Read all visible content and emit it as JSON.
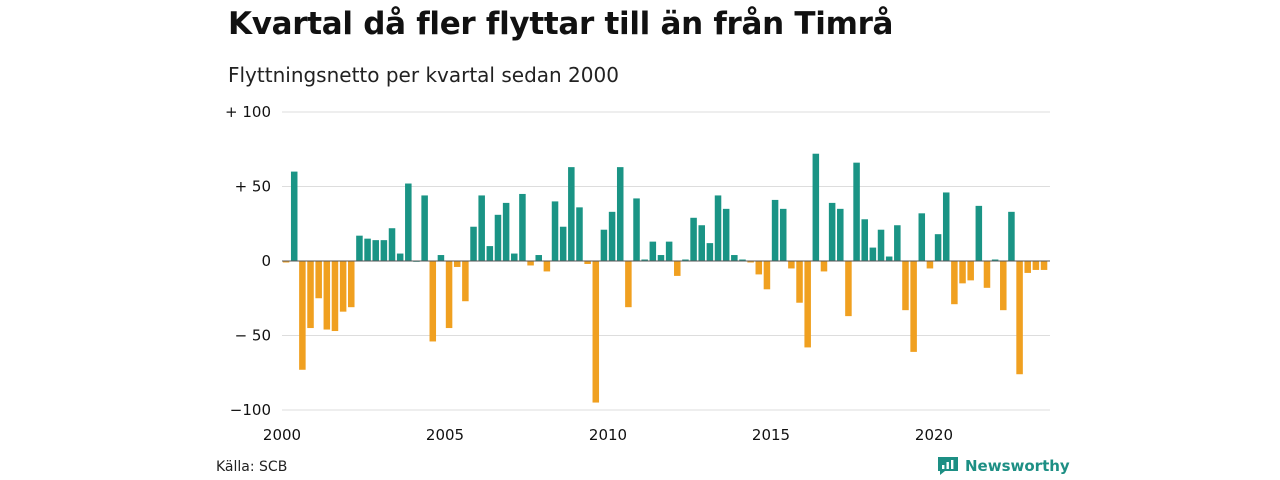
{
  "header": {
    "title": "Kvartal då fler flyttar till än från Timrå",
    "subtitle": "Flyttningsnetto per kvartal sedan 2000"
  },
  "footer": {
    "source": "Källa: SCB",
    "brand": "Newsworthy"
  },
  "colors": {
    "positive": "#1a9485",
    "negative": "#f0a020",
    "grid": "#dddddd",
    "baseline": "#555555"
  },
  "chart_data": {
    "type": "bar",
    "x_start": 2000,
    "x_end": 2023.75,
    "ylim": [
      -100,
      100
    ],
    "y_ticks": [
      {
        "value": 100,
        "label": "+ 100"
      },
      {
        "value": 50,
        "label": "+  50"
      },
      {
        "value": 0,
        "label": "0"
      },
      {
        "value": -50,
        "label": "− 50"
      },
      {
        "value": -100,
        "label": "−100"
      }
    ],
    "x_ticks": [
      {
        "value": 2000,
        "label": "2000"
      },
      {
        "value": 2005,
        "label": "2005"
      },
      {
        "value": 2010,
        "label": "2010"
      },
      {
        "value": 2015,
        "label": "2015"
      },
      {
        "value": 2020,
        "label": "2020"
      }
    ],
    "grid": true,
    "values": [
      -1,
      60,
      -73,
      -45,
      -25,
      -46,
      -47,
      -34,
      -31,
      17,
      15,
      14,
      14,
      22,
      5,
      52,
      0,
      44,
      -54,
      4,
      -45,
      -4,
      -27,
      23,
      44,
      10,
      31,
      39,
      5,
      45,
      -3,
      4,
      -7,
      40,
      23,
      63,
      36,
      -2,
      -95,
      21,
      33,
      63,
      -31,
      42,
      1,
      13,
      4,
      13,
      -10,
      1,
      29,
      24,
      12,
      44,
      35,
      4,
      1,
      -1,
      -9,
      -19,
      41,
      35,
      -5,
      -28,
      -58,
      72,
      -7,
      39,
      35,
      -37,
      66,
      28,
      9,
      21,
      3,
      24,
      -33,
      -61,
      32,
      -5,
      18,
      46,
      -29,
      -15,
      -13,
      37,
      -18,
      1,
      -33,
      33,
      -76,
      -8,
      -6,
      -6
    ]
  }
}
